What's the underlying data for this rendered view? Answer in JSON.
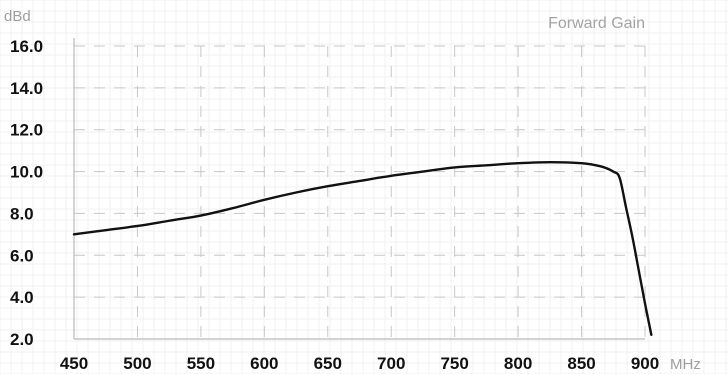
{
  "chart_data": {
    "type": "line",
    "title": "Forward Gain",
    "xlabel": "MHz",
    "ylabel": "dBd",
    "xlim": [
      450,
      900
    ],
    "ylim": [
      2.0,
      16.0
    ],
    "x_ticks": [
      "450",
      "500",
      "550",
      "600",
      "650",
      "700",
      "750",
      "800",
      "850",
      "900"
    ],
    "y_ticks": [
      "2.0",
      "4.0",
      "6.0",
      "8.0",
      "10.0",
      "12.0",
      "14.0",
      "16.0"
    ],
    "grid": true,
    "series": [
      {
        "x": [
          450,
          475,
          500,
          525,
          550,
          575,
          600,
          625,
          650,
          675,
          700,
          725,
          750,
          775,
          800,
          825,
          850,
          865,
          875,
          880,
          885,
          890,
          895,
          900,
          905
        ],
        "y": [
          7.0,
          7.2,
          7.4,
          7.65,
          7.9,
          8.25,
          8.65,
          9.0,
          9.3,
          9.55,
          9.8,
          10.0,
          10.2,
          10.3,
          10.4,
          10.45,
          10.4,
          10.25,
          10.0,
          9.7,
          8.3,
          6.9,
          5.3,
          3.7,
          2.2
        ]
      }
    ],
    "colors": {
      "series": "#111111",
      "grid": "#c7c7c7",
      "axis": "#b9b9b9"
    }
  }
}
